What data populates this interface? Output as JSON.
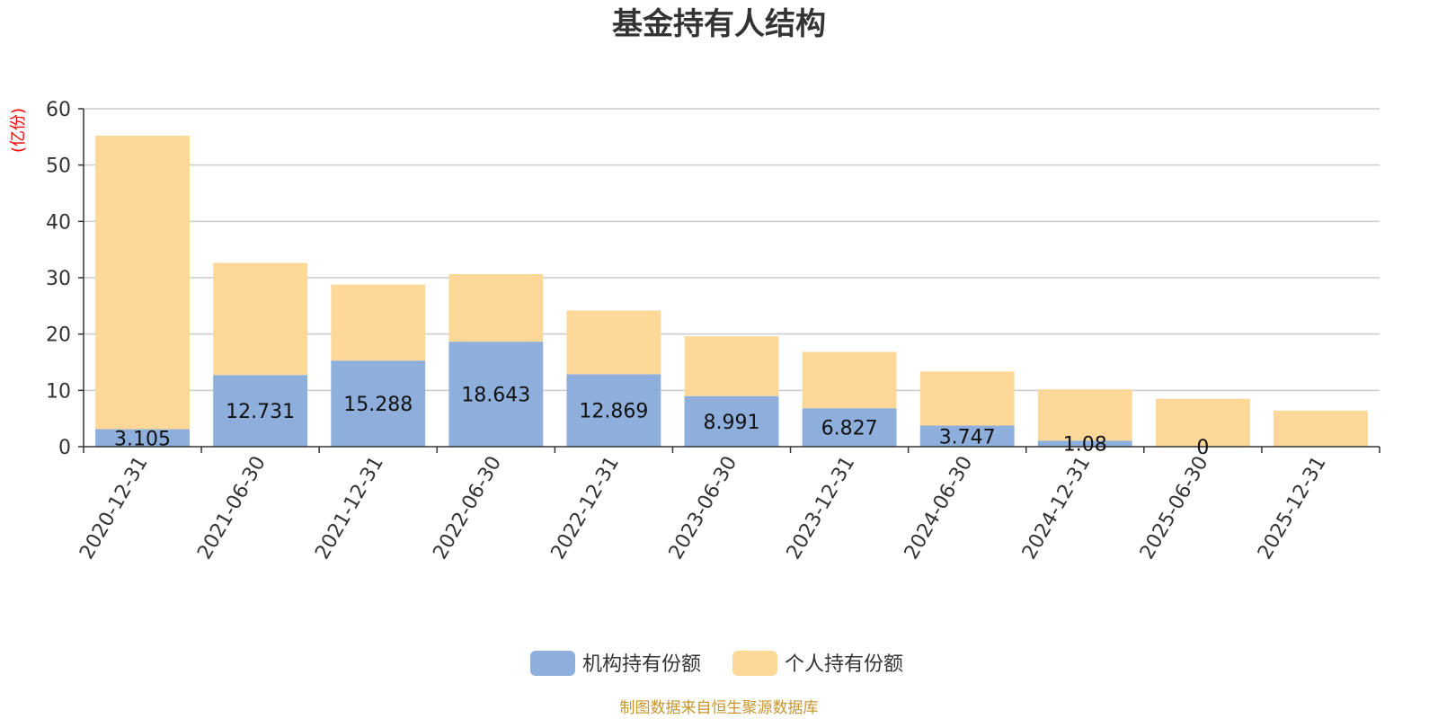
{
  "chart_data": {
    "type": "bar",
    "stacked": true,
    "title": "基金持有人结构",
    "ylabel": "(亿份)",
    "xlabel": "",
    "ylim": [
      0,
      60
    ],
    "yticks": [
      0,
      10,
      20,
      30,
      40,
      50,
      60
    ],
    "yticks_text": [
      "0",
      "10",
      "20",
      "30",
      "40",
      "50",
      "60"
    ],
    "grid": true,
    "legend_position": "bottom-center",
    "categories": [
      "2020-12-31",
      "2021-06-30",
      "2021-12-31",
      "2022-06-30",
      "2022-12-31",
      "2023-06-30",
      "2023-12-31",
      "2024-06-30",
      "2024-12-31",
      "2025-06-30",
      "2025-12-31"
    ],
    "series": [
      {
        "name": "机构持有份额",
        "color": "#8eaedc",
        "values": [
          3.105,
          12.731,
          15.288,
          18.643,
          12.869,
          8.991,
          6.827,
          3.747,
          1.08,
          0,
          0
        ],
        "labels": [
          "3.105",
          "12.731",
          "15.288",
          "18.643",
          "12.869",
          "8.991",
          "6.827",
          "3.747",
          "1.08",
          "0",
          ""
        ]
      },
      {
        "name": "个人持有份额",
        "color": "#fdd898",
        "values": [
          52.1,
          19.9,
          13.5,
          12.0,
          11.3,
          10.6,
          10.0,
          9.6,
          9.1,
          8.5,
          6.4
        ]
      }
    ],
    "source": "制图数据来自恒生聚源数据库"
  }
}
